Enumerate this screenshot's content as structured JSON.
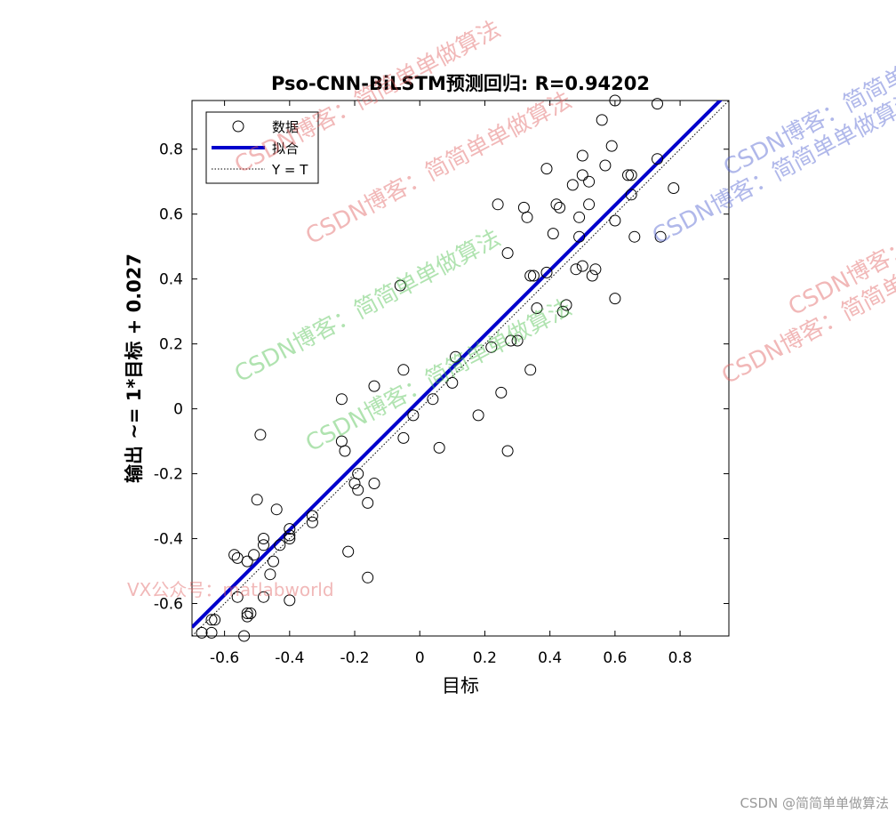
{
  "chart_data": {
    "type": "scatter",
    "title": "Pso-CNN-BiLSTM预测回归: R=0.94202",
    "xlabel": "目标",
    "ylabel": "输出 ~= 1*目标 + 0.027",
    "xlim": [
      -0.7,
      0.95
    ],
    "ylim": [
      -0.7,
      0.95
    ],
    "xticks": [
      -0.6,
      -0.4,
      -0.2,
      0,
      0.2,
      0.4,
      0.6,
      0.8
    ],
    "yticks": [
      -0.6,
      -0.4,
      -0.2,
      0,
      0.2,
      0.4,
      0.6,
      0.8
    ],
    "xtick_labels": [
      "-0.6",
      "-0.4",
      "-0.2",
      "0",
      "0.2",
      "0.4",
      "0.6",
      "0.8"
    ],
    "ytick_labels": [
      "-0.6",
      "-0.4",
      "-0.2",
      "0",
      "0.2",
      "0.4",
      "0.6",
      "0.8"
    ],
    "legend": {
      "position": "top-left",
      "entries": [
        {
          "label": "数据",
          "marker": "open-circle",
          "color": "#000000"
        },
        {
          "label": "拟合",
          "line": "solid",
          "color": "#0000CC"
        },
        {
          "label": "Y = T",
          "line": "dotted",
          "color": "#000000"
        }
      ]
    },
    "fit_line": {
      "slope": 1.0,
      "intercept": 0.027,
      "color": "#0000CC"
    },
    "identity_line": {
      "slope": 1,
      "intercept": 0,
      "color": "#000000"
    },
    "grid": false,
    "series": [
      {
        "name": "数据",
        "color": "#000000",
        "points": [
          [
            0.6,
            0.95
          ],
          [
            0.73,
            0.94
          ],
          [
            0.56,
            0.89
          ],
          [
            0.59,
            0.81
          ],
          [
            0.5,
            0.78
          ],
          [
            0.57,
            0.75
          ],
          [
            0.39,
            0.74
          ],
          [
            0.64,
            0.72
          ],
          [
            0.65,
            0.72
          ],
          [
            0.73,
            0.77
          ],
          [
            0.5,
            0.72
          ],
          [
            0.47,
            0.69
          ],
          [
            0.52,
            0.7
          ],
          [
            0.65,
            0.66
          ],
          [
            0.78,
            0.68
          ],
          [
            0.24,
            0.63
          ],
          [
            0.32,
            0.62
          ],
          [
            0.42,
            0.63
          ],
          [
            0.43,
            0.62
          ],
          [
            0.52,
            0.63
          ],
          [
            0.49,
            0.59
          ],
          [
            0.6,
            0.58
          ],
          [
            0.33,
            0.59
          ],
          [
            0.41,
            0.54
          ],
          [
            0.49,
            0.53
          ],
          [
            0.66,
            0.53
          ],
          [
            0.74,
            0.53
          ],
          [
            0.27,
            0.48
          ],
          [
            0.48,
            0.43
          ],
          [
            0.5,
            0.44
          ],
          [
            0.54,
            0.43
          ],
          [
            0.53,
            0.41
          ],
          [
            0.35,
            0.41
          ],
          [
            0.34,
            0.41
          ],
          [
            0.39,
            0.42
          ],
          [
            -0.06,
            0.38
          ],
          [
            0.6,
            0.34
          ],
          [
            0.36,
            0.31
          ],
          [
            0.44,
            0.3
          ],
          [
            0.45,
            0.32
          ],
          [
            0.28,
            0.21
          ],
          [
            0.3,
            0.21
          ],
          [
            0.22,
            0.19
          ],
          [
            0.11,
            0.16
          ],
          [
            0.1,
            0.08
          ],
          [
            0.34,
            0.12
          ],
          [
            -0.05,
            0.12
          ],
          [
            -0.14,
            0.07
          ],
          [
            -0.24,
            0.03
          ],
          [
            0.25,
            0.05
          ],
          [
            0.04,
            0.03
          ],
          [
            -0.02,
            -0.02
          ],
          [
            0.18,
            -0.02
          ],
          [
            -0.49,
            -0.08
          ],
          [
            -0.05,
            -0.09
          ],
          [
            -0.24,
            -0.1
          ],
          [
            -0.23,
            -0.13
          ],
          [
            0.06,
            -0.12
          ],
          [
            0.27,
            -0.13
          ],
          [
            -0.19,
            -0.2
          ],
          [
            -0.2,
            -0.23
          ],
          [
            -0.14,
            -0.23
          ],
          [
            -0.19,
            -0.25
          ],
          [
            -0.16,
            -0.29
          ],
          [
            -0.5,
            -0.28
          ],
          [
            -0.44,
            -0.31
          ],
          [
            -0.33,
            -0.33
          ],
          [
            -0.33,
            -0.35
          ],
          [
            -0.4,
            -0.37
          ],
          [
            -0.4,
            -0.39
          ],
          [
            -0.48,
            -0.4
          ],
          [
            -0.48,
            -0.42
          ],
          [
            -0.43,
            -0.42
          ],
          [
            -0.4,
            -0.4
          ],
          [
            -0.22,
            -0.44
          ],
          [
            -0.57,
            -0.45
          ],
          [
            -0.56,
            -0.46
          ],
          [
            -0.53,
            -0.47
          ],
          [
            -0.51,
            -0.45
          ],
          [
            -0.45,
            -0.47
          ],
          [
            -0.46,
            -0.51
          ],
          [
            -0.16,
            -0.52
          ],
          [
            -0.48,
            -0.58
          ],
          [
            -0.56,
            -0.58
          ],
          [
            -0.4,
            -0.59
          ],
          [
            -0.53,
            -0.63
          ],
          [
            -0.52,
            -0.63
          ],
          [
            -0.53,
            -0.64
          ],
          [
            -0.64,
            -0.65
          ],
          [
            -0.63,
            -0.65
          ],
          [
            -0.67,
            -0.69
          ],
          [
            -0.64,
            -0.69
          ],
          [
            -0.54,
            -0.7
          ]
        ]
      }
    ]
  },
  "watermarks": [
    "CSDN博客：简简单单做算法",
    "VX公众号：matlabworld",
    "CSDN @简简单单做算法"
  ]
}
